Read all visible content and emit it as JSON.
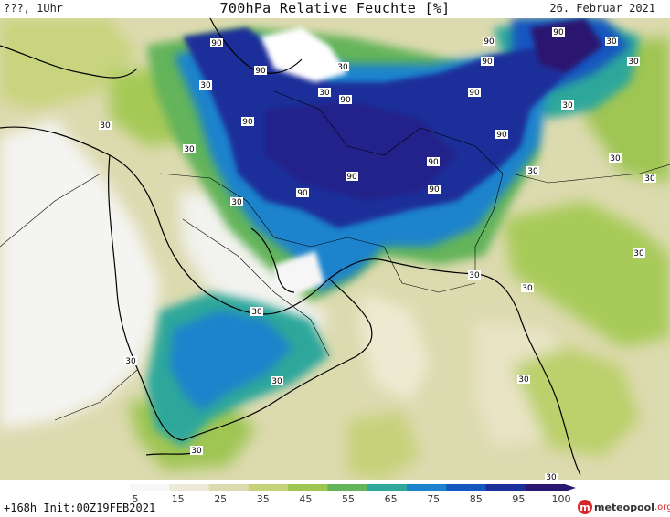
{
  "header": {
    "left": "???, 1Uhr",
    "title": "700hPa Relative Feuchte [%]",
    "right": "26. Februar 2021"
  },
  "footer": {
    "run_info": "+168h  Init:00Z19FEB2021",
    "logo_text": "meteopool",
    "logo_suffix": ".org",
    "logo_letter": "m"
  },
  "legend": {
    "ticks": [
      "5",
      "15",
      "25",
      "35",
      "45",
      "55",
      "65",
      "75",
      "85",
      "95",
      "100"
    ],
    "colors": [
      "#f7f7f7",
      "#ece9d8",
      "#dcdaaf",
      "#c6d27a",
      "#9fc552",
      "#63b45a",
      "#2fa79b",
      "#1c83cc",
      "#1457bf",
      "#1a2f9a",
      "#2a1870"
    ]
  },
  "contour_labels": [
    "90",
    "30"
  ]
}
